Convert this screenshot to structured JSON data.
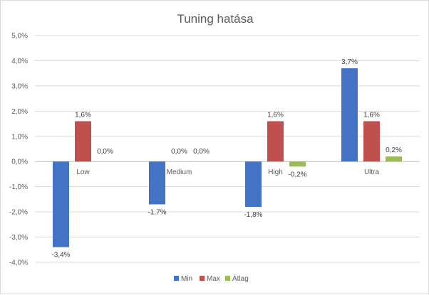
{
  "chart_data": {
    "type": "bar",
    "title": "Tuning hatása",
    "categories": [
      "Low",
      "Medium",
      "High",
      "Ultra"
    ],
    "series": [
      {
        "name": "Min",
        "values": [
          -3.4,
          -1.7,
          -1.8,
          3.7
        ],
        "labels": [
          "-3,4%",
          "-1,7%",
          "-1,8%",
          "3,7%"
        ],
        "color": "#4472C4"
      },
      {
        "name": "Max",
        "values": [
          1.6,
          0.0,
          1.6,
          1.6
        ],
        "labels": [
          "1,6%",
          "0,0%",
          "1,6%",
          "1,6%"
        ],
        "color": "#C0504D"
      },
      {
        "name": "Átlag",
        "values": [
          0.0,
          0.0,
          -0.2,
          0.2
        ],
        "labels": [
          "0,0%",
          "0,0%",
          "-0,2%",
          "0,2%"
        ],
        "color": "#9BBB59"
      }
    ],
    "ylim": [
      -4.0,
      5.0
    ],
    "yticks": [
      5.0,
      4.0,
      3.0,
      2.0,
      1.0,
      0.0,
      -1.0,
      -2.0,
      -3.0,
      -4.0
    ],
    "ytick_labels": [
      "5,0%",
      "4,0%",
      "3,0%",
      "2,0%",
      "1,0%",
      "0,0%",
      "-1,0%",
      "-2,0%",
      "-3,0%",
      "-4,0%"
    ],
    "xlabel": "",
    "ylabel": "",
    "grid": true,
    "legend": "bottom"
  }
}
